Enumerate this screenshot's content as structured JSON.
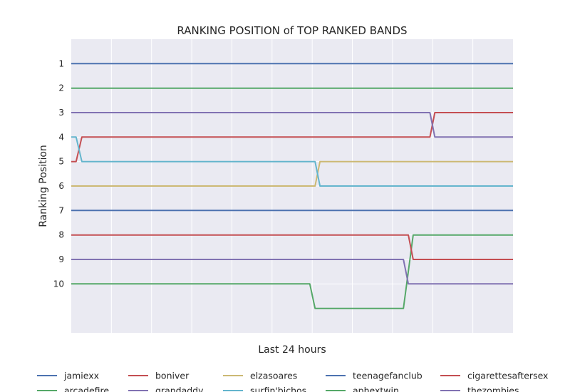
{
  "chart_data": {
    "type": "line",
    "title": "RANKING POSITION of TOP RANKED BANDS",
    "xlabel": "Last 24 hours",
    "ylabel": "Ranking Position",
    "ylim": [
      12,
      0
    ],
    "xlim": [
      0,
      1
    ],
    "yticks": [
      1,
      2,
      3,
      4,
      5,
      6,
      7,
      8,
      9,
      10
    ],
    "grid": true,
    "legend": "bottom, 5 columns, 2 rows",
    "series": [
      {
        "name": "jamiexx",
        "color": "#4c72b0",
        "points": [
          [
            0,
            1
          ],
          [
            1,
            1
          ]
        ]
      },
      {
        "name": "arcadefire",
        "color": "#55a868",
        "points": [
          [
            0,
            2
          ],
          [
            1,
            2
          ]
        ]
      },
      {
        "name": "boniver",
        "color": "#c44e52",
        "points": [
          [
            0,
            5
          ],
          [
            0.011,
            5
          ],
          [
            0.024,
            4
          ],
          [
            0.812,
            4
          ],
          [
            0.823,
            3
          ],
          [
            1,
            3
          ]
        ]
      },
      {
        "name": "grandaddy",
        "color": "#8172b2",
        "points": [
          [
            0,
            3
          ],
          [
            0.812,
            3
          ],
          [
            0.823,
            4
          ],
          [
            1,
            4
          ]
        ]
      },
      {
        "name": "elzasoares",
        "color": "#ccb974",
        "points": [
          [
            0,
            6
          ],
          [
            0.552,
            6
          ],
          [
            0.563,
            5
          ],
          [
            1,
            5
          ]
        ]
      },
      {
        "name": "surfin'bichos",
        "color": "#64b5cd",
        "points": [
          [
            0,
            4
          ],
          [
            0.011,
            4
          ],
          [
            0.024,
            5
          ],
          [
            0.552,
            5
          ],
          [
            0.563,
            6
          ],
          [
            1,
            6
          ]
        ]
      },
      {
        "name": "teenagefanclub",
        "color": "#4c72b0",
        "points": [
          [
            0,
            7
          ],
          [
            1,
            7
          ]
        ]
      },
      {
        "name": "aphextwin",
        "color": "#55a868",
        "points": [
          [
            0,
            10
          ],
          [
            0.54,
            10
          ],
          [
            0.552,
            11
          ],
          [
            0.752,
            11
          ],
          [
            0.774,
            8
          ],
          [
            1,
            8
          ]
        ]
      },
      {
        "name": "cigarettesaftersex",
        "color": "#c44e52",
        "points": [
          [
            0,
            8
          ],
          [
            0.763,
            8
          ],
          [
            0.774,
            9
          ],
          [
            1,
            9
          ]
        ]
      },
      {
        "name": "thezombies",
        "color": "#8172b2",
        "points": [
          [
            0,
            9
          ],
          [
            0.752,
            9
          ],
          [
            0.763,
            10
          ],
          [
            1,
            10
          ]
        ]
      }
    ]
  }
}
